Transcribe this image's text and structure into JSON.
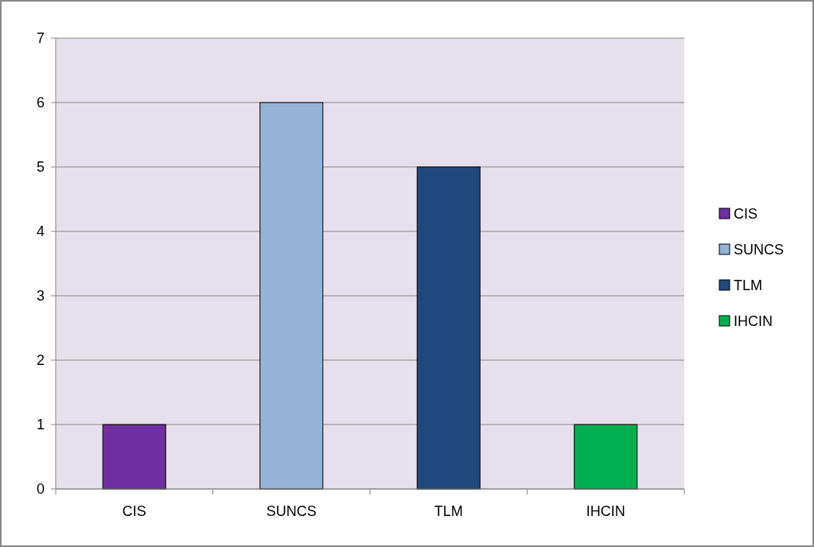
{
  "chart_data": {
    "type": "bar",
    "categories": [
      "CIS",
      "SUNCS",
      "TLM",
      "IHCIN"
    ],
    "series": [
      {
        "name": "CIS",
        "color": "#7030a0",
        "values": [
          1,
          null,
          null,
          null
        ]
      },
      {
        "name": "SUNCS",
        "color": "#95b3d7",
        "values": [
          null,
          6,
          null,
          null
        ]
      },
      {
        "name": "TLM",
        "color": "#1f497d",
        "values": [
          null,
          null,
          5,
          null
        ]
      },
      {
        "name": "IHCIN",
        "color": "#00b050",
        "values": [
          null,
          null,
          null,
          1
        ]
      }
    ],
    "ylim": [
      0,
      7
    ],
    "yticks": [
      0,
      1,
      2,
      3,
      4,
      5,
      6,
      7
    ],
    "grid": "y",
    "legend": "right"
  }
}
